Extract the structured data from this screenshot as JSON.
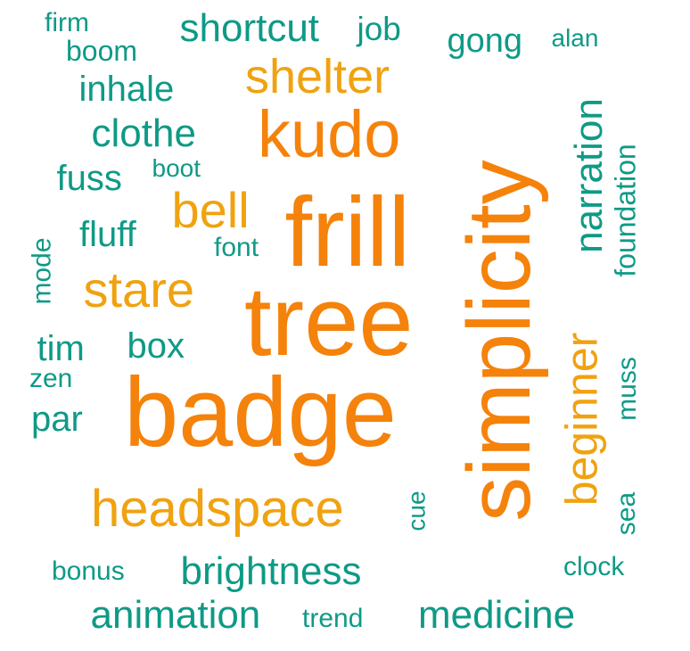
{
  "colors": {
    "teal": "#0e9a86",
    "amber": "#f0a20f",
    "orange": "#f5820a"
  },
  "words": [
    {
      "text": "firm",
      "color": "teal",
      "rotated": false
    },
    {
      "text": "boom",
      "color": "teal",
      "rotated": false
    },
    {
      "text": "shortcut",
      "color": "teal",
      "rotated": false
    },
    {
      "text": "job",
      "color": "teal",
      "rotated": false
    },
    {
      "text": "gong",
      "color": "teal",
      "rotated": false
    },
    {
      "text": "alan",
      "color": "teal",
      "rotated": false
    },
    {
      "text": "shelter",
      "color": "amber",
      "rotated": false
    },
    {
      "text": "inhale",
      "color": "teal",
      "rotated": false
    },
    {
      "text": "kudo",
      "color": "orange",
      "rotated": false
    },
    {
      "text": "clothe",
      "color": "teal",
      "rotated": false
    },
    {
      "text": "narration",
      "color": "teal",
      "rotated": true
    },
    {
      "text": "foundation",
      "color": "teal",
      "rotated": true
    },
    {
      "text": "fuss",
      "color": "teal",
      "rotated": false
    },
    {
      "text": "boot",
      "color": "teal",
      "rotated": false
    },
    {
      "text": "simplicity",
      "color": "orange",
      "rotated": true
    },
    {
      "text": "bell",
      "color": "amber",
      "rotated": false
    },
    {
      "text": "frill",
      "color": "orange",
      "rotated": false
    },
    {
      "text": "fluff",
      "color": "teal",
      "rotated": false
    },
    {
      "text": "font",
      "color": "teal",
      "rotated": false
    },
    {
      "text": "mode",
      "color": "teal",
      "rotated": true
    },
    {
      "text": "stare",
      "color": "amber",
      "rotated": false
    },
    {
      "text": "tree",
      "color": "orange",
      "rotated": false
    },
    {
      "text": "beginner",
      "color": "amber",
      "rotated": true
    },
    {
      "text": "tim",
      "color": "teal",
      "rotated": false
    },
    {
      "text": "box",
      "color": "teal",
      "rotated": false
    },
    {
      "text": "muss",
      "color": "teal",
      "rotated": true
    },
    {
      "text": "zen",
      "color": "teal",
      "rotated": false
    },
    {
      "text": "badge",
      "color": "orange",
      "rotated": false
    },
    {
      "text": "par",
      "color": "teal",
      "rotated": false
    },
    {
      "text": "cue",
      "color": "teal",
      "rotated": true
    },
    {
      "text": "headspace",
      "color": "amber",
      "rotated": false
    },
    {
      "text": "sea",
      "color": "teal",
      "rotated": true
    },
    {
      "text": "bonus",
      "color": "teal",
      "rotated": false
    },
    {
      "text": "brightness",
      "color": "teal",
      "rotated": false
    },
    {
      "text": "clock",
      "color": "teal",
      "rotated": false
    },
    {
      "text": "animation",
      "color": "teal",
      "rotated": false
    },
    {
      "text": "trend",
      "color": "teal",
      "rotated": false
    },
    {
      "text": "medicine",
      "color": "teal",
      "rotated": false
    }
  ]
}
